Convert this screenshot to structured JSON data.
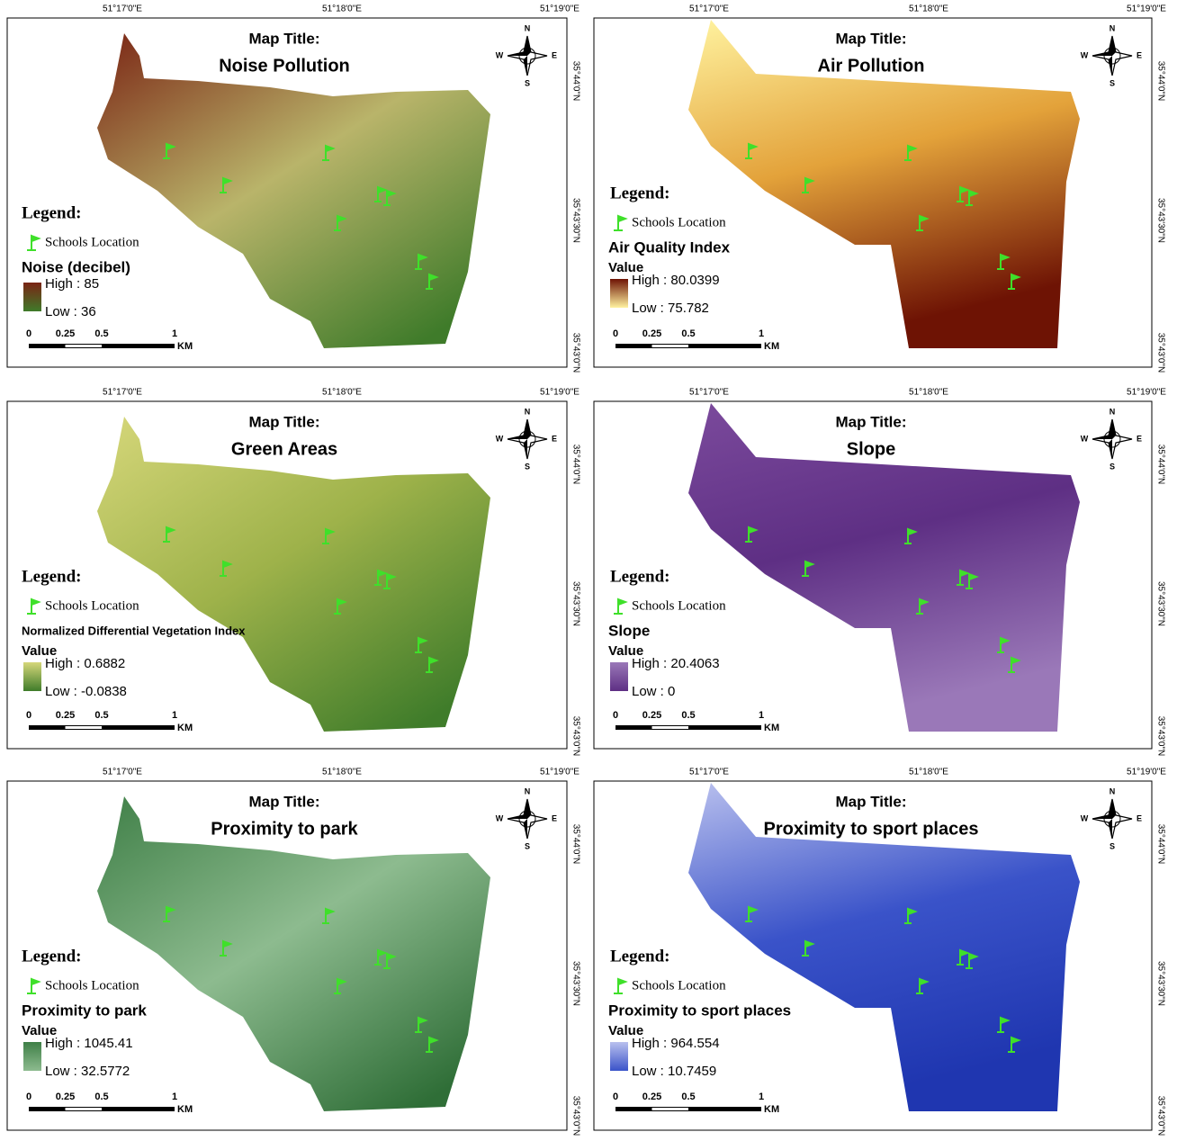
{
  "coordinates": {
    "lon": [
      "51°17'0\"E",
      "51°18'0\"E",
      "51°19'0\"E"
    ],
    "lat": [
      "35°44'0\"N",
      "35°43'30\"N",
      "35°43'0\"N"
    ]
  },
  "compass": {
    "n": "N",
    "s": "S",
    "e": "E",
    "w": "W"
  },
  "scale_bar": {
    "ticks": [
      "0",
      "0.25",
      "0.5",
      "1"
    ],
    "unit": "KM"
  },
  "panels": [
    {
      "map_title_label": "Map Title:",
      "title": "Noise Pollution",
      "legend": "Legend:",
      "schools": "Schools Location",
      "layer": "Noise (decibel)",
      "high": "High : 85",
      "low": "Low : 36",
      "ramp": [
        "#7a2414",
        "#b9b46a",
        "#3f7b2a"
      ]
    },
    {
      "map_title_label": "Map Title:",
      "title": "Air Pollution",
      "legend": "Legend:",
      "schools": "Schools Location",
      "layer": "Air Quality Index",
      "value_heading": "Value",
      "high": "High : 80.0399",
      "low": "Low : 75.782",
      "ramp": [
        "#fff3a0",
        "#e3a23a",
        "#6e1304"
      ]
    },
    {
      "map_title_label": "Map Title:",
      "title": "Green Areas",
      "legend": "Legend:",
      "schools": "Schools Location",
      "layer": "Normalized Differential Vegetation Index",
      "value_heading": "Value",
      "high": "High : 0.6882",
      "low": "Low : -0.0838",
      "ramp": [
        "#d6d77a",
        "#9eb24a",
        "#3f7c2a"
      ]
    },
    {
      "map_title_label": "Map Title:",
      "title": "Slope",
      "legend": "Legend:",
      "schools": "Schools Location",
      "layer": "Slope",
      "value_heading": "Value",
      "high": "High : 20.4063",
      "low": "Low : 0",
      "ramp": [
        "#7b4a9c",
        "#5e2f84",
        "#9a78b8"
      ]
    },
    {
      "map_title_label": "Map Title:",
      "title": "Proximity to park",
      "legend": "Legend:",
      "schools": "Schools Location",
      "layer": "Proximity to park",
      "value_heading": "Value",
      "high": "High : 1045.41",
      "low": "Low : 32.5772",
      "ramp": [
        "#3f7f47",
        "#8dbb8f",
        "#2f6e37"
      ]
    },
    {
      "map_title_label": "Map Title:",
      "title": "Proximity to sport places",
      "legend": "Legend:",
      "schools": "Schools Location",
      "layer": "Proximity to sport places",
      "value_heading": "Value",
      "high": "High : 964.554",
      "low": "Low : 10.7459",
      "ramp": [
        "#b9c0ee",
        "#3a53c9",
        "#1f36b0"
      ]
    }
  ]
}
